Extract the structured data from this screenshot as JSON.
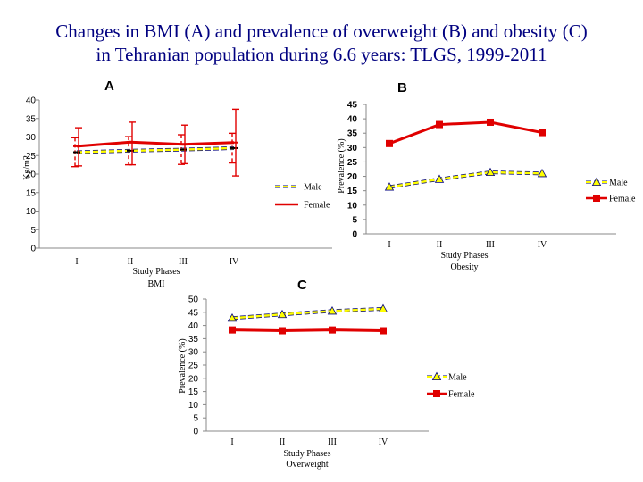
{
  "slide": {
    "title_line1": "Changes in BMI (A) and prevalence of overweight (B) and obesity (C)",
    "title_line2": "in Tehranian population during 6.6 years: TLGS, 1999-2011"
  },
  "colors": {
    "male": "#FFFF00",
    "female": "#E00000",
    "male_outline": "#000080",
    "error_bar": "#E00000",
    "title": "#000080"
  },
  "chart_data": [
    {
      "id": "A",
      "panel_label": "A",
      "type": "line",
      "categories": [
        "I",
        "II",
        "III",
        "IV"
      ],
      "xlabel": "Study Phases",
      "xlabel2": "BMI",
      "ylabel": "Kg/m2",
      "ylim": [
        0,
        40
      ],
      "yticks": [
        0,
        5,
        10,
        15,
        20,
        25,
        30,
        35,
        40
      ],
      "series": [
        {
          "name": "Male",
          "values": [
            25.9,
            26.3,
            26.6,
            27.0
          ],
          "err_low": [
            22.0,
            22.5,
            22.6,
            23.0
          ],
          "err_high": [
            29.8,
            30.1,
            30.6,
            31.0
          ]
        },
        {
          "name": "Female",
          "values": [
            27.5,
            28.6,
            28.0,
            28.5
          ],
          "err_low": [
            22.2,
            22.5,
            22.8,
            19.5
          ],
          "err_high": [
            32.5,
            34.0,
            33.2,
            37.5
          ]
        }
      ],
      "legend_position": "right"
    },
    {
      "id": "B",
      "panel_label": "B",
      "type": "line",
      "categories": [
        "I",
        "II",
        "III",
        "IV"
      ],
      "xlabel": "Study Phases",
      "xlabel2": "Obesity",
      "ylabel": "Prevalence (%)",
      "ylim": [
        0,
        45
      ],
      "yticks": [
        0,
        5,
        10,
        15,
        20,
        25,
        30,
        35,
        40,
        45
      ],
      "series": [
        {
          "name": "Male",
          "values": [
            16.3,
            19.0,
            21.4,
            21.0
          ]
        },
        {
          "name": "Female",
          "values": [
            31.4,
            38.0,
            38.8,
            35.2
          ]
        }
      ],
      "legend_position": "right"
    },
    {
      "id": "C",
      "panel_label": "C",
      "type": "line",
      "categories": [
        "I",
        "II",
        "III",
        "IV"
      ],
      "xlabel": "Study Phases",
      "xlabel2": "Overweight",
      "ylabel": "Prevalence (%)",
      "ylim": [
        0,
        50
      ],
      "yticks": [
        0,
        5,
        10,
        15,
        20,
        25,
        30,
        35,
        40,
        45,
        50
      ],
      "series": [
        {
          "name": "Male",
          "values": [
            42.8,
            44.2,
            45.5,
            46.3
          ]
        },
        {
          "name": "Female",
          "values": [
            38.3,
            38.0,
            38.3,
            38.0
          ]
        }
      ],
      "legend_position": "right"
    }
  ]
}
